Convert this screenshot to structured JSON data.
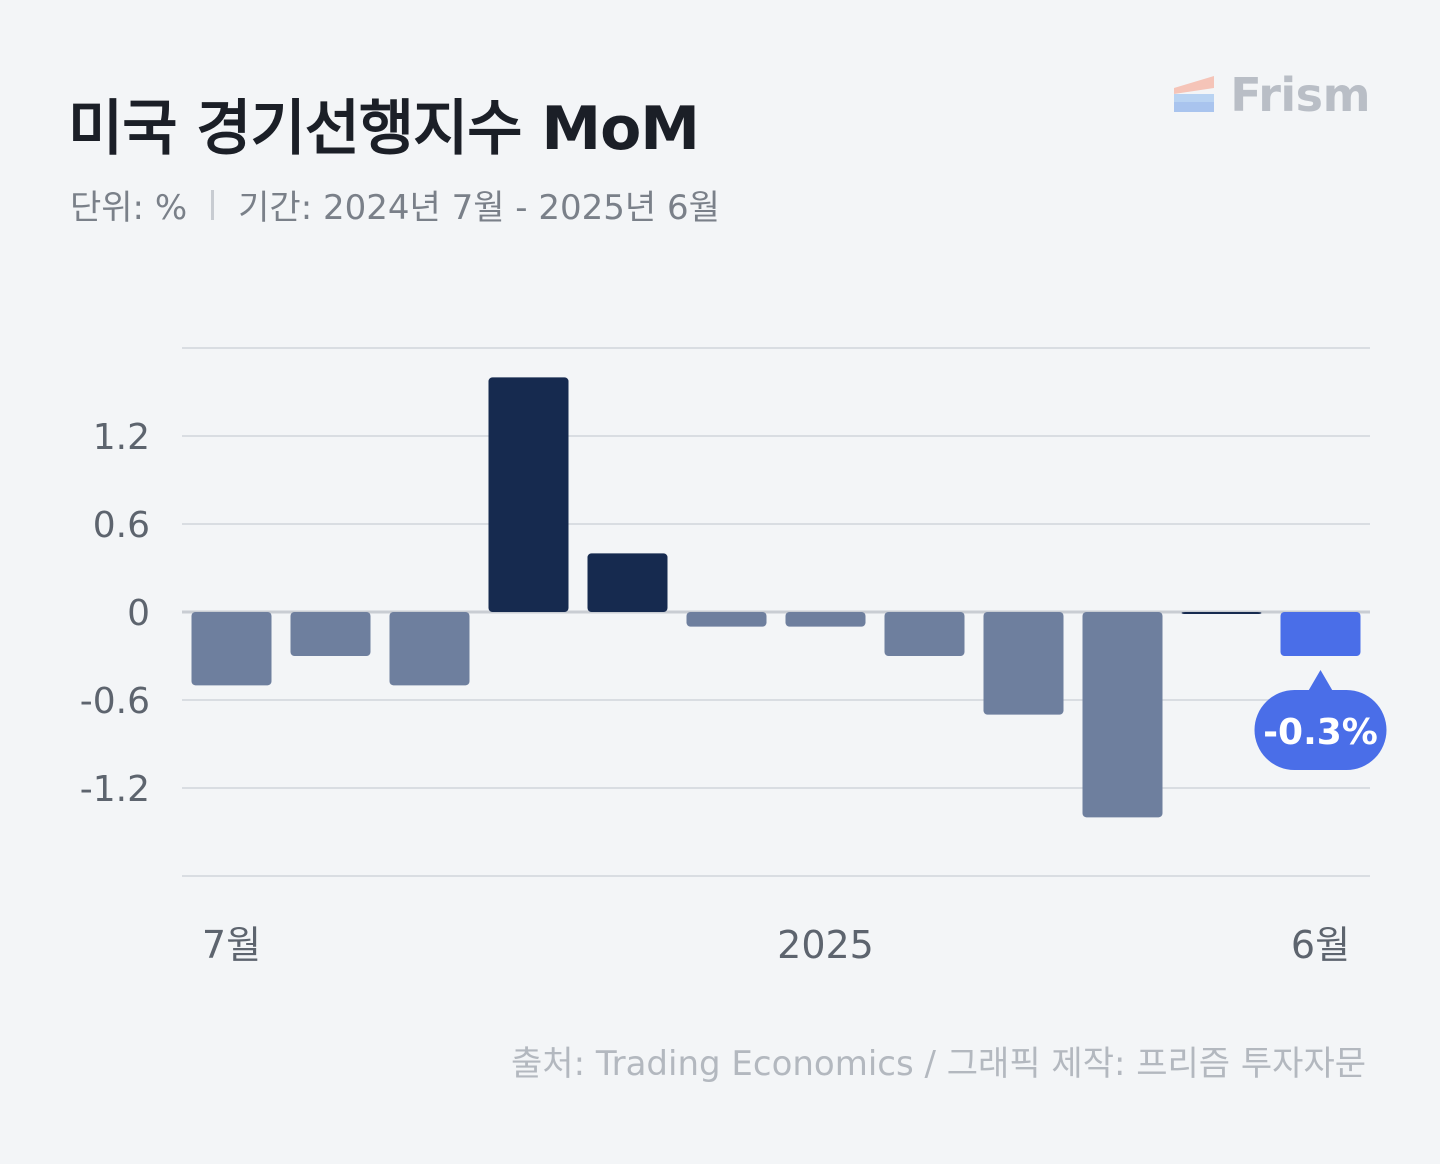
{
  "header": {
    "title": "미국 경기선행지수 MoM",
    "unit": "단위: %",
    "period": "기간: 2024년 7월 - 2025년 6월"
  },
  "brand": {
    "name": "Frism",
    "icon": "frism-logo-icon"
  },
  "footer": {
    "source": "출처: Trading Economics / 그래픽 제작: 프리즘 투자자문"
  },
  "colors": {
    "negative": "#6e7f9e",
    "positive": "#162a4f",
    "highlight": "#4a6ee8",
    "grid": "#d9dde2",
    "zero": "#c9cdd3",
    "tick": "#5d646e"
  },
  "chart_data": {
    "type": "bar",
    "categories": [
      "2024-07",
      "2024-08",
      "2024-09",
      "2024-10",
      "2024-11",
      "2024-12",
      "2025-01",
      "2025-02",
      "2025-03",
      "2025-04",
      "2025-05",
      "2025-06"
    ],
    "values": [
      -0.5,
      -0.3,
      -0.5,
      1.6,
      0.4,
      -0.1,
      -0.1,
      -0.3,
      -0.7,
      -1.4,
      0.0,
      -0.3
    ],
    "x_tick_labels": [
      {
        "index": 0,
        "label": "7월"
      },
      {
        "index": 6,
        "label": "2025"
      },
      {
        "index": 11,
        "label": "6월"
      }
    ],
    "y_ticks": [
      1.2,
      0.6,
      0,
      -0.6,
      -1.2
    ],
    "y_tick_labels": [
      "1.2",
      "0.6",
      "0",
      "-0.6",
      "-1.2"
    ],
    "ylim": [
      -1.8,
      1.8
    ],
    "grid": true,
    "highlight": {
      "index": 11,
      "label": "-0.3%"
    }
  }
}
